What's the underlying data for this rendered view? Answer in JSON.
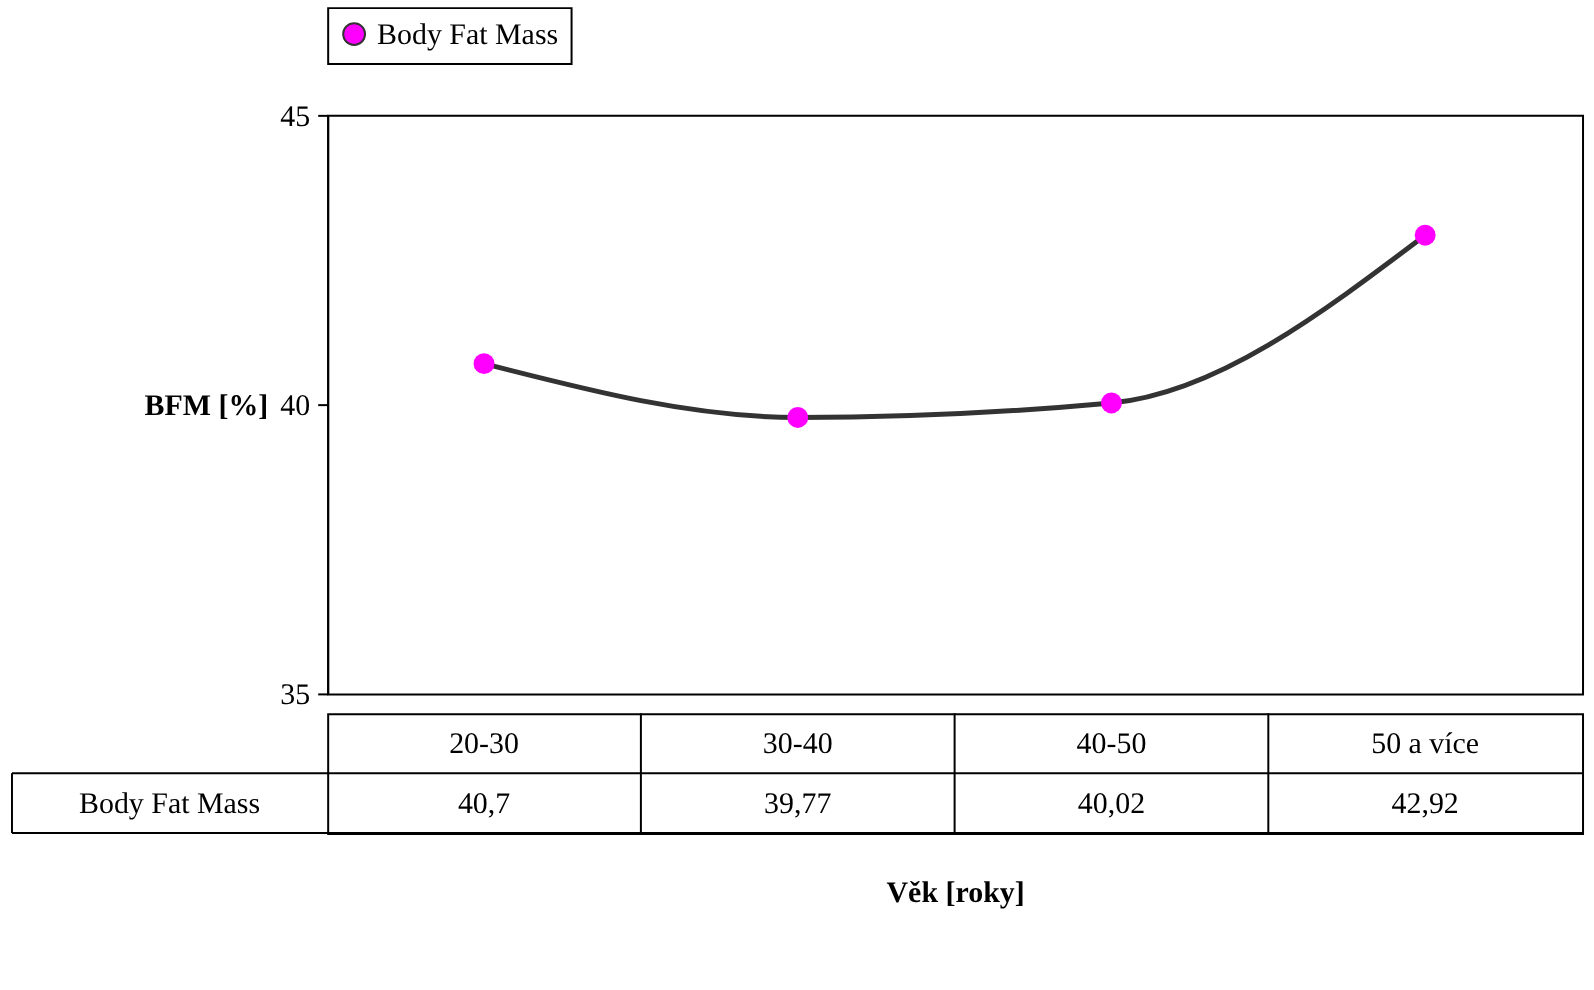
{
  "chart_data": {
    "type": "line",
    "xlabel": "Věk [roky]",
    "ylabel": "BFM [%]",
    "categories": [
      "20-30",
      "30-40",
      "40-50",
      "50 a více"
    ],
    "series": [
      {
        "name": "Body Fat Mass",
        "color": "#ff00ff",
        "values": [
          40.7,
          39.77,
          40.02,
          42.92
        ],
        "value_labels": [
          "40,7",
          "39,77",
          "40,02",
          "42,92"
        ]
      }
    ],
    "ylim": [
      35,
      45
    ],
    "yticks": [
      35,
      40,
      45
    ],
    "grid": false,
    "legend": "top",
    "marker": "circle",
    "line_style": "solid"
  }
}
